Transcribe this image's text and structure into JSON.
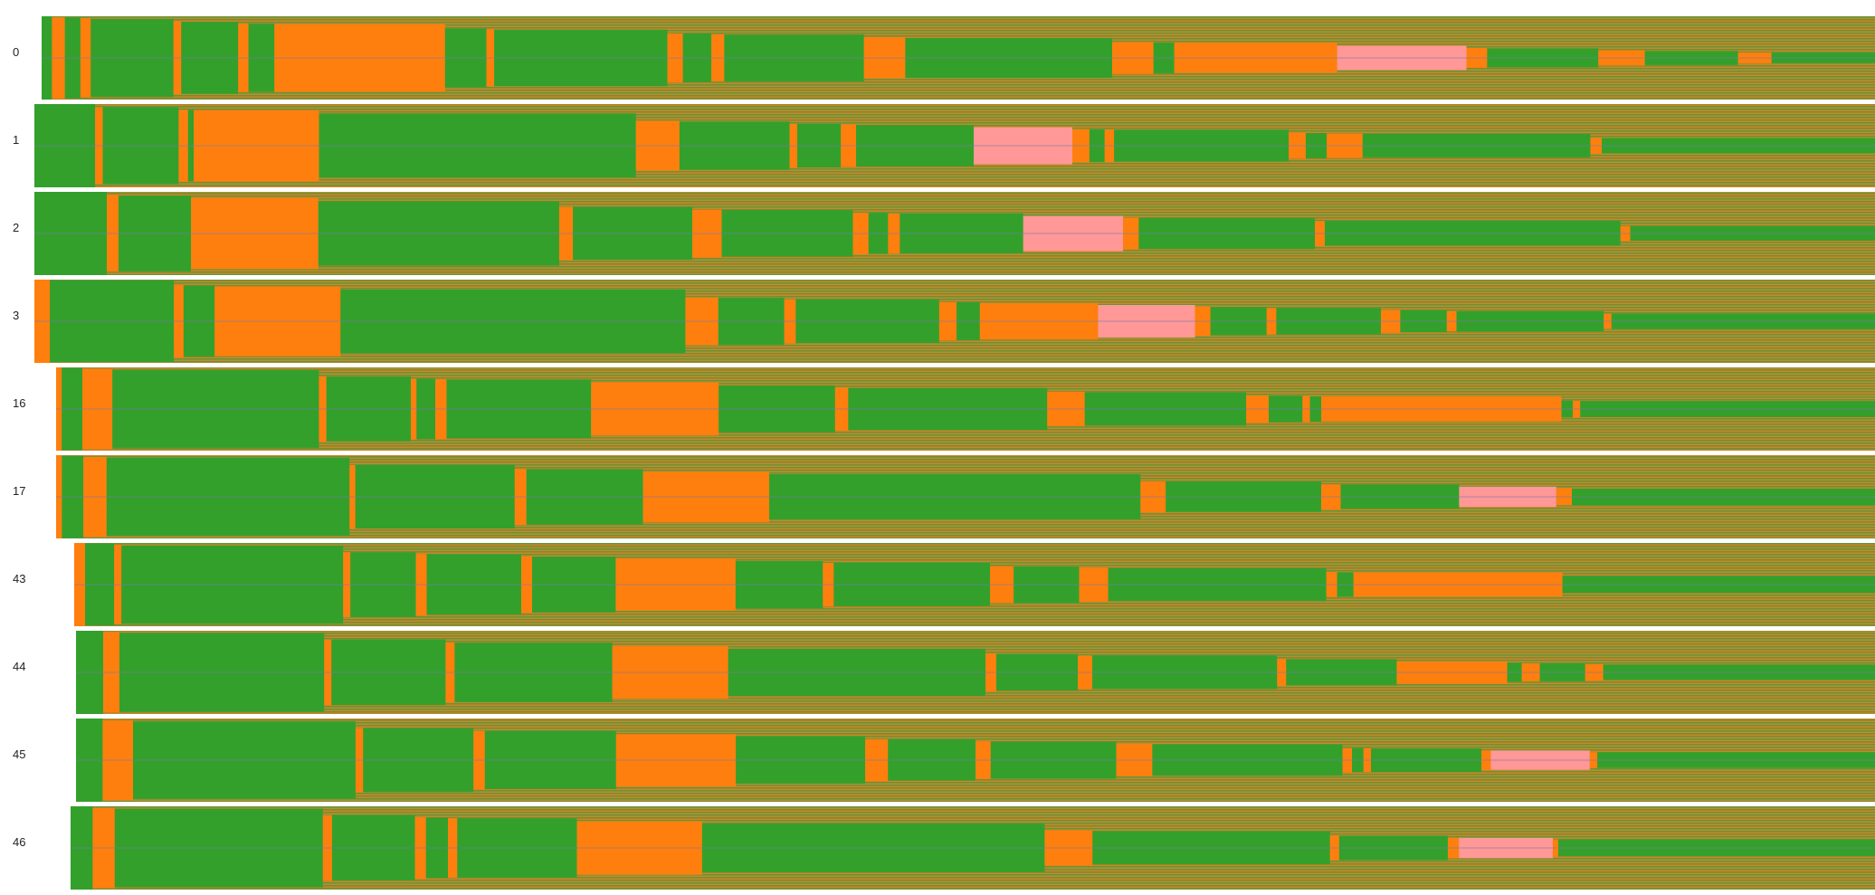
{
  "colors": {
    "background": "#ffffff",
    "green": "#33a02c",
    "orange": "#ff7f0e",
    "pink": "#ff9896",
    "stripe_mix": "#9a8a45",
    "center_line": "#7a7aa8"
  },
  "chart_data": {
    "type": "heatmap",
    "title": "",
    "xlabel": "",
    "ylabel": "",
    "grid": false,
    "legend": "none",
    "rows": [
      {
        "label": "0",
        "segments": [
          [
            "g",
            0.4
          ],
          [
            "o",
            0.5
          ],
          [
            "g",
            0.6
          ],
          [
            "o",
            0.4
          ],
          [
            "g",
            3.2
          ],
          [
            "o",
            0.3
          ],
          [
            "g",
            2.2
          ],
          [
            "o",
            0.4
          ],
          [
            "g",
            1.0
          ],
          [
            "o",
            6.6
          ],
          [
            "g",
            1.6
          ],
          [
            "o",
            0.3
          ],
          [
            "g",
            6.7
          ],
          [
            "o",
            0.6
          ],
          [
            "g",
            1.1
          ],
          [
            "o",
            0.5
          ],
          [
            "g",
            5.4
          ],
          [
            "o",
            1.6
          ],
          [
            "g",
            8.0
          ],
          [
            "o",
            1.6
          ],
          [
            "g",
            0.8
          ],
          [
            "o",
            6.3
          ],
          [
            "p",
            5.0
          ],
          [
            "o",
            0.8
          ],
          [
            "g",
            4.3
          ],
          [
            "o",
            1.8
          ],
          [
            "g",
            3.6
          ],
          [
            "o",
            1.3
          ],
          [
            "g",
            4.0
          ]
        ]
      },
      {
        "label": "1",
        "segments": [
          [
            "g",
            3.2
          ],
          [
            "o",
            0.4
          ],
          [
            "g",
            4.0
          ],
          [
            "o",
            0.5
          ],
          [
            "g",
            0.3
          ],
          [
            "o",
            6.6
          ],
          [
            "g",
            16.7
          ],
          [
            "o",
            2.3
          ],
          [
            "g",
            5.8
          ],
          [
            "o",
            0.4
          ],
          [
            "g",
            2.3
          ],
          [
            "o",
            0.8
          ],
          [
            "g",
            6.2
          ],
          [
            "p",
            5.2
          ],
          [
            "o",
            0.9
          ],
          [
            "g",
            0.8
          ],
          [
            "o",
            0.5
          ],
          [
            "g",
            9.2
          ],
          [
            "o",
            0.9
          ],
          [
            "g",
            1.1
          ],
          [
            "o",
            1.9
          ],
          [
            "g",
            12.0
          ],
          [
            "o",
            0.6
          ],
          [
            "g",
            14.4
          ]
        ]
      },
      {
        "label": "2",
        "segments": [
          [
            "g",
            3.7
          ],
          [
            "o",
            0.6
          ],
          [
            "g",
            3.7
          ],
          [
            "o",
            6.5
          ],
          [
            "g",
            12.3
          ],
          [
            "o",
            0.7
          ],
          [
            "g",
            6.1
          ],
          [
            "o",
            1.5
          ],
          [
            "g",
            6.7
          ],
          [
            "o",
            0.8
          ],
          [
            "g",
            1.0
          ],
          [
            "o",
            0.6
          ],
          [
            "g",
            6.3
          ],
          [
            "p",
            5.1
          ],
          [
            "o",
            0.8
          ],
          [
            "g",
            9.0
          ],
          [
            "o",
            0.5
          ],
          [
            "g",
            15.1
          ],
          [
            "o",
            0.5
          ],
          [
            "g",
            12.5
          ]
        ]
      },
      {
        "label": "3",
        "segments": [
          [
            "o",
            0.8
          ],
          [
            "g",
            6.4
          ],
          [
            "o",
            0.5
          ],
          [
            "g",
            1.6
          ],
          [
            "o",
            6.5
          ],
          [
            "g",
            17.8
          ],
          [
            "o",
            1.7
          ],
          [
            "g",
            3.4
          ],
          [
            "o",
            0.6
          ],
          [
            "g",
            7.4
          ],
          [
            "o",
            0.9
          ],
          [
            "g",
            1.2
          ],
          [
            "o",
            6.1
          ],
          [
            "p",
            5.0
          ],
          [
            "o",
            0.8
          ],
          [
            "g",
            2.9
          ],
          [
            "o",
            0.5
          ],
          [
            "g",
            5.4
          ],
          [
            "o",
            1.0
          ],
          [
            "g",
            2.4
          ],
          [
            "o",
            0.5
          ],
          [
            "g",
            7.6
          ],
          [
            "o",
            0.4
          ],
          [
            "g",
            13.6
          ]
        ]
      },
      {
        "label": "16",
        "segments": [
          [
            "o",
            0.3
          ],
          [
            "g",
            1.1
          ],
          [
            "o",
            1.6
          ],
          [
            "g",
            11.0
          ],
          [
            "o",
            0.4
          ],
          [
            "g",
            4.5
          ],
          [
            "o",
            0.3
          ],
          [
            "g",
            1.0
          ],
          [
            "o",
            0.6
          ],
          [
            "g",
            7.7
          ],
          [
            "o",
            6.8
          ],
          [
            "g",
            6.2
          ],
          [
            "o",
            0.7
          ],
          [
            "g",
            10.6
          ],
          [
            "o",
            2.0
          ],
          [
            "g",
            8.6
          ],
          [
            "o",
            1.2
          ],
          [
            "g",
            1.8
          ],
          [
            "o",
            0.4
          ],
          [
            "g",
            0.6
          ],
          [
            "o",
            12.8
          ],
          [
            "g",
            0.6
          ],
          [
            "o",
            0.4
          ],
          [
            "g",
            15.7
          ]
        ]
      },
      {
        "label": "17",
        "segments": [
          [
            "o",
            0.3
          ],
          [
            "g",
            1.1
          ],
          [
            "o",
            1.2
          ],
          [
            "g",
            12.5
          ],
          [
            "o",
            0.3
          ],
          [
            "g",
            8.2
          ],
          [
            "o",
            0.6
          ],
          [
            "g",
            6.0
          ],
          [
            "o",
            6.5
          ],
          [
            "g",
            19.1
          ],
          [
            "o",
            1.3
          ],
          [
            "g",
            8.0
          ],
          [
            "o",
            1.0
          ],
          [
            "g",
            6.1
          ],
          [
            "p",
            5.0
          ],
          [
            "o",
            0.8
          ],
          [
            "g",
            15.6
          ]
        ]
      },
      {
        "label": "43",
        "segments": [
          [
            "o",
            0.6
          ],
          [
            "g",
            1.6
          ],
          [
            "o",
            0.4
          ],
          [
            "g",
            12.2
          ],
          [
            "o",
            0.4
          ],
          [
            "g",
            3.6
          ],
          [
            "o",
            0.6
          ],
          [
            "g",
            5.2
          ],
          [
            "o",
            0.6
          ],
          [
            "g",
            4.6
          ],
          [
            "o",
            6.6
          ],
          [
            "g",
            4.8
          ],
          [
            "o",
            0.6
          ],
          [
            "g",
            8.6
          ],
          [
            "o",
            1.3
          ],
          [
            "g",
            3.6
          ],
          [
            "o",
            1.6
          ],
          [
            "g",
            12.0
          ],
          [
            "o",
            0.6
          ],
          [
            "g",
            0.9
          ],
          [
            "o",
            11.5
          ],
          [
            "g",
            17.2
          ]
        ]
      },
      {
        "label": "44",
        "segments": [
          [
            "g",
            1.5
          ],
          [
            "o",
            0.9
          ],
          [
            "g",
            11.3
          ],
          [
            "o",
            0.4
          ],
          [
            "g",
            6.3
          ],
          [
            "o",
            0.5
          ],
          [
            "g",
            8.7
          ],
          [
            "o",
            6.4
          ],
          [
            "g",
            14.2
          ],
          [
            "o",
            0.6
          ],
          [
            "g",
            4.5
          ],
          [
            "o",
            0.8
          ],
          [
            "g",
            10.2
          ],
          [
            "o",
            0.5
          ],
          [
            "g",
            6.1
          ],
          [
            "o",
            6.1
          ],
          [
            "g",
            0.8
          ],
          [
            "o",
            1.0
          ],
          [
            "g",
            2.5
          ],
          [
            "o",
            1.0
          ],
          [
            "g",
            15.0
          ]
        ]
      },
      {
        "label": "45",
        "segments": [
          [
            "g",
            1.4
          ],
          [
            "o",
            1.6
          ],
          [
            "g",
            11.7
          ],
          [
            "o",
            0.4
          ],
          [
            "g",
            5.8
          ],
          [
            "o",
            0.6
          ],
          [
            "g",
            6.9
          ],
          [
            "o",
            6.3
          ],
          [
            "g",
            6.8
          ],
          [
            "o",
            1.2
          ],
          [
            "g",
            4.6
          ],
          [
            "o",
            0.8
          ],
          [
            "g",
            6.6
          ],
          [
            "o",
            1.9
          ],
          [
            "g",
            10.0
          ],
          [
            "o",
            0.5
          ],
          [
            "g",
            0.6
          ],
          [
            "o",
            0.4
          ],
          [
            "g",
            5.8
          ],
          [
            "o",
            0.5
          ],
          [
            "p",
            5.2
          ],
          [
            "o",
            0.4
          ],
          [
            "g",
            14.6
          ]
        ]
      },
      {
        "label": "46",
        "segments": [
          [
            "g",
            1.2
          ],
          [
            "o",
            1.2
          ],
          [
            "g",
            11.3
          ],
          [
            "o",
            0.5
          ],
          [
            "g",
            4.5
          ],
          [
            "o",
            0.6
          ],
          [
            "g",
            1.2
          ],
          [
            "o",
            0.5
          ],
          [
            "g",
            6.5
          ],
          [
            "o",
            6.8
          ],
          [
            "g",
            18.6
          ],
          [
            "o",
            2.6
          ],
          [
            "g",
            12.9
          ],
          [
            "o",
            0.5
          ],
          [
            "g",
            5.9
          ],
          [
            "o",
            0.6
          ],
          [
            "p",
            5.1
          ],
          [
            "o",
            0.3
          ],
          [
            "g",
            17.2
          ]
        ]
      }
    ]
  }
}
